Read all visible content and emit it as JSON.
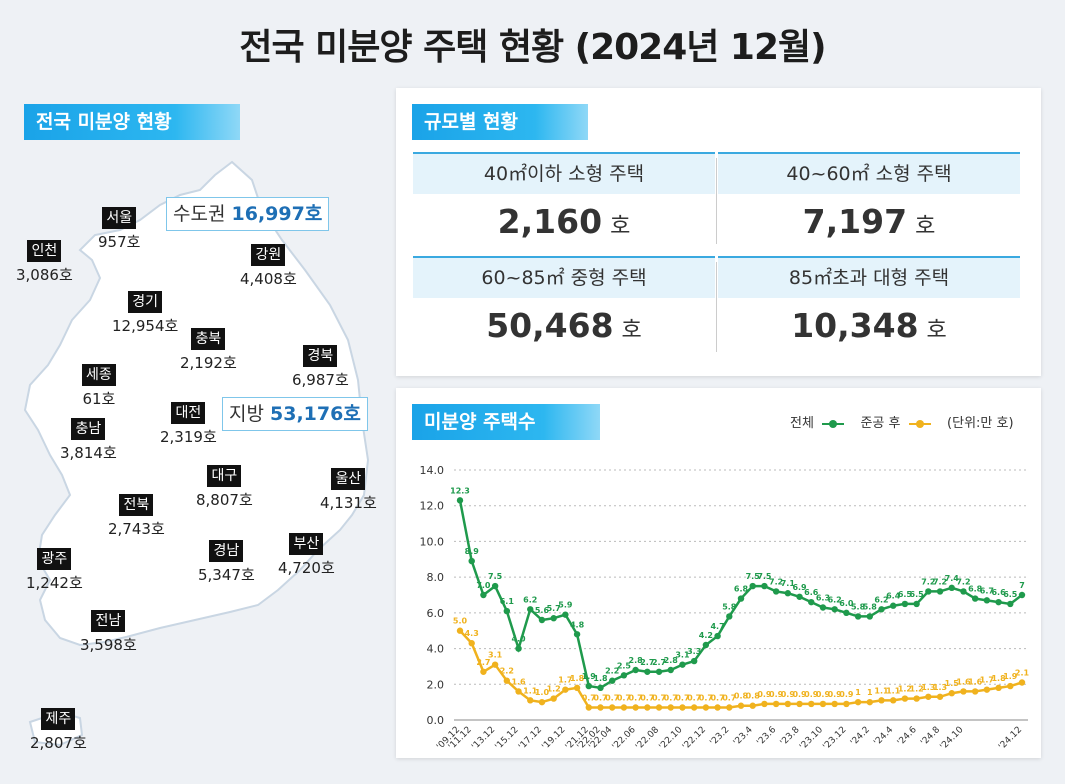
{
  "title": "전국 미분양 주택 현황 (2024년 12월)",
  "map_section": {
    "tag": "전국 미분양 현황",
    "capital_box": {
      "label": "수도권",
      "value": "16,997호"
    },
    "local_box": {
      "label": "지방",
      "value": "53,176호"
    },
    "regions": [
      {
        "name": "서울",
        "value": "957호"
      },
      {
        "name": "인천",
        "value": "3,086호"
      },
      {
        "name": "강원",
        "value": "4,408호"
      },
      {
        "name": "경기",
        "value": "12,954호"
      },
      {
        "name": "충북",
        "value": "2,192호"
      },
      {
        "name": "경북",
        "value": "6,987호"
      },
      {
        "name": "세종",
        "value": "61호"
      },
      {
        "name": "대전",
        "value": "2,319호"
      },
      {
        "name": "충남",
        "value": "3,814호"
      },
      {
        "name": "대구",
        "value": "8,807호"
      },
      {
        "name": "울산",
        "value": "4,131호"
      },
      {
        "name": "전북",
        "value": "2,743호"
      },
      {
        "name": "부산",
        "value": "4,720호"
      },
      {
        "name": "경남",
        "value": "5,347호"
      },
      {
        "name": "광주",
        "value": "1,242호"
      },
      {
        "name": "전남",
        "value": "3,598호"
      },
      {
        "name": "제주",
        "value": "2,807호"
      }
    ]
  },
  "size_section": {
    "tag": "규모별 현황",
    "cells": [
      {
        "label": "40㎡이하 소형 주택",
        "value": "2,160",
        "unit": "호"
      },
      {
        "label": "40~60㎡ 소형 주택",
        "value": "7,197",
        "unit": "호"
      },
      {
        "label": "60~85㎡ 중형 주택",
        "value": "50,468",
        "unit": "호"
      },
      {
        "label": "85㎡초과 대형 주택",
        "value": "10,348",
        "unit": "호"
      }
    ]
  },
  "chart_section": {
    "tag": "미분양 주택수",
    "legend_total": "전체",
    "legend_after": "준공 후",
    "unit_note": "(단위:만 호)",
    "colors": {
      "total": "#1f9a4c",
      "after": "#f0b21e"
    }
  },
  "chart_data": {
    "type": "line",
    "ylim": [
      0,
      14
    ],
    "yticks": [
      "0.0",
      "2.0",
      "4.0",
      "6.0",
      "8.0",
      "10.0",
      "12.0",
      "14.0"
    ],
    "xtick_labels": [
      "'09.12",
      "'11.12",
      "'13.12",
      "'15.12",
      "'17.12",
      "'19.12",
      "'21.12",
      "'22.02",
      "'22.04",
      "'22.06",
      "'22.08",
      "'22.10",
      "'22.12",
      "'23.2",
      "'23.4",
      "'23.6",
      "'23.8",
      "'23.10",
      "'23.12",
      "'24.2",
      "'24.4",
      "'24.6",
      "'24.8",
      "'24.10",
      "'24.12"
    ],
    "series": [
      {
        "name": "전체",
        "values": [
          12.3,
          8.9,
          7.0,
          7.5,
          6.1,
          4.0,
          6.2,
          5.6,
          5.7,
          5.9,
          4.8,
          1.9,
          1.8,
          2.2,
          2.5,
          2.8,
          2.7,
          2.7,
          2.8,
          3.1,
          3.3,
          4.2,
          4.7,
          5.8,
          6.8,
          7.5,
          7.5,
          7.2,
          7.1,
          6.9,
          6.6,
          6.3,
          6.2,
          6.0,
          5.8,
          5.8,
          6.2,
          6.4,
          6.5,
          6.5,
          7.2,
          7.2,
          7.4,
          7.2,
          6.8,
          6.7,
          6.6,
          6.5,
          7.0
        ]
      },
      {
        "name": "준공 후",
        "values": [
          5.0,
          4.3,
          2.7,
          3.1,
          2.2,
          1.6,
          1.1,
          1.0,
          1.2,
          1.7,
          1.8,
          0.7,
          0.7,
          0.7,
          0.7,
          0.7,
          0.7,
          0.7,
          0.7,
          0.7,
          0.7,
          0.7,
          0.7,
          0.7,
          0.8,
          0.8,
          0.9,
          0.9,
          0.9,
          0.9,
          0.9,
          0.9,
          0.9,
          0.9,
          1.0,
          1.0,
          1.1,
          1.1,
          1.2,
          1.2,
          1.3,
          1.3,
          1.5,
          1.6,
          1.6,
          1.7,
          1.8,
          1.9,
          2.1
        ]
      }
    ],
    "point_labels": {
      "total": [
        "12.3",
        "8.9",
        "7.0",
        "7.5",
        "6.1",
        "4.0",
        "6.2",
        "5.6",
        "5.7",
        "5.9",
        "4.8",
        "1.9",
        "1.8",
        "2.2",
        "2.5",
        "2.8",
        "2.7",
        "2.7",
        "2.8",
        "3.1",
        "3.3",
        "4.2",
        "4.7",
        "5.8",
        "6.8",
        "7.5",
        "7.5",
        "7.2",
        "7.1",
        "6.9",
        "6.6",
        "6.3",
        "6.2",
        "6.0",
        "5.8",
        "5.8",
        "6.2",
        "6.4",
        "6.5",
        "6.5",
        "7.2",
        "7.2",
        "7.4",
        "7.2",
        "6.8",
        "6.7",
        "6.6",
        "6.5",
        "7"
      ],
      "after": [
        "5.0",
        "4.3",
        "2.7",
        "3.1",
        "2.2",
        "1.6",
        "1.1",
        "1.0",
        "1.2",
        "1.7",
        "1.8",
        "0.7",
        "0.7",
        "0.7",
        "0.7",
        "0.7",
        "0.7",
        "0.7",
        "0.7",
        "0.7",
        "0.7",
        "0.7",
        "0.7",
        "0.7",
        "0.8",
        "0.8",
        "0.9",
        "0.9",
        "0.9",
        "0.9",
        "0.9",
        "0.9",
        "0.9",
        "0.9",
        "1",
        "1",
        "1.1",
        "1.1",
        "1.2",
        "1.2",
        "1.3",
        "1.3",
        "1.5",
        "1.6",
        "1.6",
        "1.7",
        "1.8",
        "1.9",
        "2.1"
      ]
    }
  }
}
